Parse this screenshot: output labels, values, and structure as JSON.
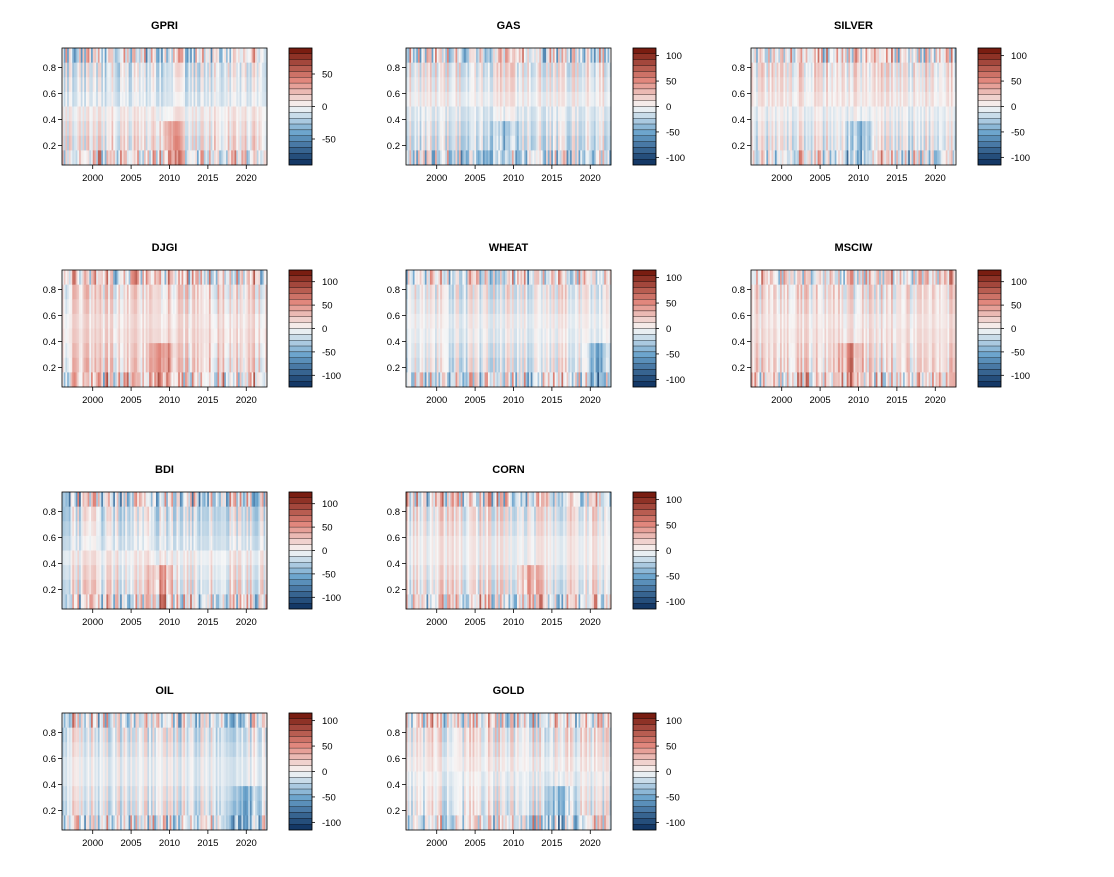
{
  "figure": {
    "palette_low": "#0b2d5c",
    "palette_mid_low": "#6aa3cc",
    "palette_white": "#f7f7f7",
    "palette_mid_high": "#e0857a",
    "palette_high": "#6e1206"
  },
  "chart_data": [
    {
      "type": "heatmap",
      "title": "GPRI",
      "xlabel": "",
      "ylabel": "",
      "x_ticks": [
        "2000",
        "2005",
        "2010",
        "2015",
        "2020"
      ],
      "y_ticks": [
        "0.2",
        "0.4",
        "0.6",
        "0.8"
      ],
      "xlim": [
        1996,
        2022.7
      ],
      "ylim": [
        0.05,
        0.95
      ],
      "color_ticks": [
        "50",
        "0",
        "-50"
      ],
      "color_tick_values": [
        50,
        0,
        -50
      ],
      "zlim": [
        -90,
        90
      ],
      "seed": 11,
      "bias_high": -0.15,
      "bias_low": 0.05,
      "hot_year": 2010
    },
    {
      "type": "heatmap",
      "title": "GAS",
      "xlabel": "",
      "ylabel": "",
      "x_ticks": [
        "2000",
        "2005",
        "2010",
        "2015",
        "2020"
      ],
      "y_ticks": [
        "0.2",
        "0.4",
        "0.6",
        "0.8"
      ],
      "xlim": [
        1996,
        2022.7
      ],
      "ylim": [
        0.05,
        0.95
      ],
      "color_ticks": [
        "100",
        "50",
        "0",
        "-50",
        "-100"
      ],
      "color_tick_values": [
        100,
        50,
        0,
        -50,
        -100
      ],
      "zlim": [
        -115,
        115
      ],
      "seed": 23,
      "bias_high": 0.05,
      "bias_low": -0.1,
      "hot_year": 2009
    },
    {
      "type": "heatmap",
      "title": "SILVER",
      "xlabel": "",
      "ylabel": "",
      "x_ticks": [
        "2000",
        "2005",
        "2010",
        "2015",
        "2020"
      ],
      "y_ticks": [
        "0.2",
        "0.4",
        "0.6",
        "0.8"
      ],
      "xlim": [
        1996,
        2022.7
      ],
      "ylim": [
        0.05,
        0.95
      ],
      "color_ticks": [
        "100",
        "50",
        "0",
        "-50",
        "-100"
      ],
      "color_tick_values": [
        100,
        50,
        0,
        -50,
        -100
      ],
      "zlim": [
        -115,
        115
      ],
      "seed": 37,
      "bias_high": 0.1,
      "bias_low": -0.05,
      "hot_year": 2010
    },
    {
      "type": "heatmap",
      "title": "DJGI",
      "xlabel": "",
      "ylabel": "",
      "x_ticks": [
        "2000",
        "2005",
        "2010",
        "2015",
        "2020"
      ],
      "y_ticks": [
        "0.2",
        "0.4",
        "0.6",
        "0.8"
      ],
      "xlim": [
        1996,
        2022.7
      ],
      "ylim": [
        0.05,
        0.95
      ],
      "color_ticks": [
        "100",
        "50",
        "0",
        "-50",
        "-100"
      ],
      "color_tick_values": [
        100,
        50,
        0,
        -50,
        -100
      ],
      "zlim": [
        -125,
        125
      ],
      "seed": 41,
      "bias_high": 0.15,
      "bias_low": 0.2,
      "hot_year": 2009
    },
    {
      "type": "heatmap",
      "title": "WHEAT",
      "xlabel": "",
      "ylabel": "",
      "x_ticks": [
        "2000",
        "2005",
        "2010",
        "2015",
        "2020"
      ],
      "y_ticks": [
        "0.2",
        "0.4",
        "0.6",
        "0.8"
      ],
      "xlim": [
        1996,
        2022.7
      ],
      "ylim": [
        0.05,
        0.95
      ],
      "color_ticks": [
        "100",
        "50",
        "0",
        "-50",
        "-100"
      ],
      "color_tick_values": [
        100,
        50,
        0,
        -50,
        -100
      ],
      "zlim": [
        -115,
        115
      ],
      "seed": 53,
      "bias_high": 0.0,
      "bias_low": -0.05,
      "hot_year": 2021
    },
    {
      "type": "heatmap",
      "title": "MSCIW",
      "xlabel": "",
      "ylabel": "",
      "x_ticks": [
        "2000",
        "2005",
        "2010",
        "2015",
        "2020"
      ],
      "y_ticks": [
        "0.2",
        "0.4",
        "0.6",
        "0.8"
      ],
      "xlim": [
        1996,
        2022.7
      ],
      "ylim": [
        0.05,
        0.95
      ],
      "color_ticks": [
        "100",
        "50",
        "0",
        "-50",
        "-100"
      ],
      "color_tick_values": [
        100,
        50,
        0,
        -50,
        -100
      ],
      "zlim": [
        -125,
        125
      ],
      "seed": 67,
      "bias_high": 0.1,
      "bias_low": 0.15,
      "hot_year": 2009
    },
    {
      "type": "heatmap",
      "title": "BDI",
      "xlabel": "",
      "ylabel": "",
      "x_ticks": [
        "2000",
        "2005",
        "2010",
        "2015",
        "2020"
      ],
      "y_ticks": [
        "0.2",
        "0.4",
        "0.6",
        "0.8"
      ],
      "xlim": [
        1996,
        2022.7
      ],
      "ylim": [
        0.05,
        0.95
      ],
      "color_ticks": [
        "100",
        "50",
        "0",
        "-50",
        "-100"
      ],
      "color_tick_values": [
        100,
        50,
        0,
        -50,
        -100
      ],
      "zlim": [
        -125,
        125
      ],
      "seed": 79,
      "bias_high": -0.15,
      "bias_low": 0.05,
      "hot_year": 2009
    },
    {
      "type": "heatmap",
      "title": "CORN",
      "xlabel": "",
      "ylabel": "",
      "x_ticks": [
        "2000",
        "2005",
        "2010",
        "2015",
        "2020"
      ],
      "y_ticks": [
        "0.2",
        "0.4",
        "0.6",
        "0.8"
      ],
      "xlim": [
        1996,
        2022.7
      ],
      "ylim": [
        0.05,
        0.95
      ],
      "color_ticks": [
        "100",
        "50",
        "0",
        "-50",
        "-100"
      ],
      "color_tick_values": [
        100,
        50,
        0,
        -50,
        -100
      ],
      "zlim": [
        -115,
        115
      ],
      "seed": 83,
      "bias_high": 0.05,
      "bias_low": 0.05,
      "hot_year": 2012
    },
    {
      "type": "heatmap",
      "title": "OIL",
      "xlabel": "",
      "ylabel": "",
      "x_ticks": [
        "2000",
        "2005",
        "2010",
        "2015",
        "2020"
      ],
      "y_ticks": [
        "0.2",
        "0.4",
        "0.6",
        "0.8"
      ],
      "xlim": [
        1996,
        2022.7
      ],
      "ylim": [
        0.05,
        0.95
      ],
      "color_ticks": [
        "100",
        "50",
        "0",
        "-50",
        "-100"
      ],
      "color_tick_values": [
        100,
        50,
        0,
        -50,
        -100
      ],
      "zlim": [
        -115,
        115
      ],
      "seed": 97,
      "bias_high": -0.05,
      "bias_low": -0.05,
      "hot_year": 2020
    },
    {
      "type": "heatmap",
      "title": "GOLD",
      "xlabel": "",
      "ylabel": "",
      "x_ticks": [
        "2000",
        "2005",
        "2010",
        "2015",
        "2020"
      ],
      "y_ticks": [
        "0.2",
        "0.4",
        "0.6",
        "0.8"
      ],
      "xlim": [
        1996,
        2022.7
      ],
      "ylim": [
        0.05,
        0.95
      ],
      "color_ticks": [
        "100",
        "50",
        "0",
        "-50",
        "-100"
      ],
      "color_tick_values": [
        100,
        50,
        0,
        -50,
        -100
      ],
      "zlim": [
        -115,
        115
      ],
      "seed": 101,
      "bias_high": 0.05,
      "bias_low": -0.05,
      "hot_year": 2016
    }
  ]
}
